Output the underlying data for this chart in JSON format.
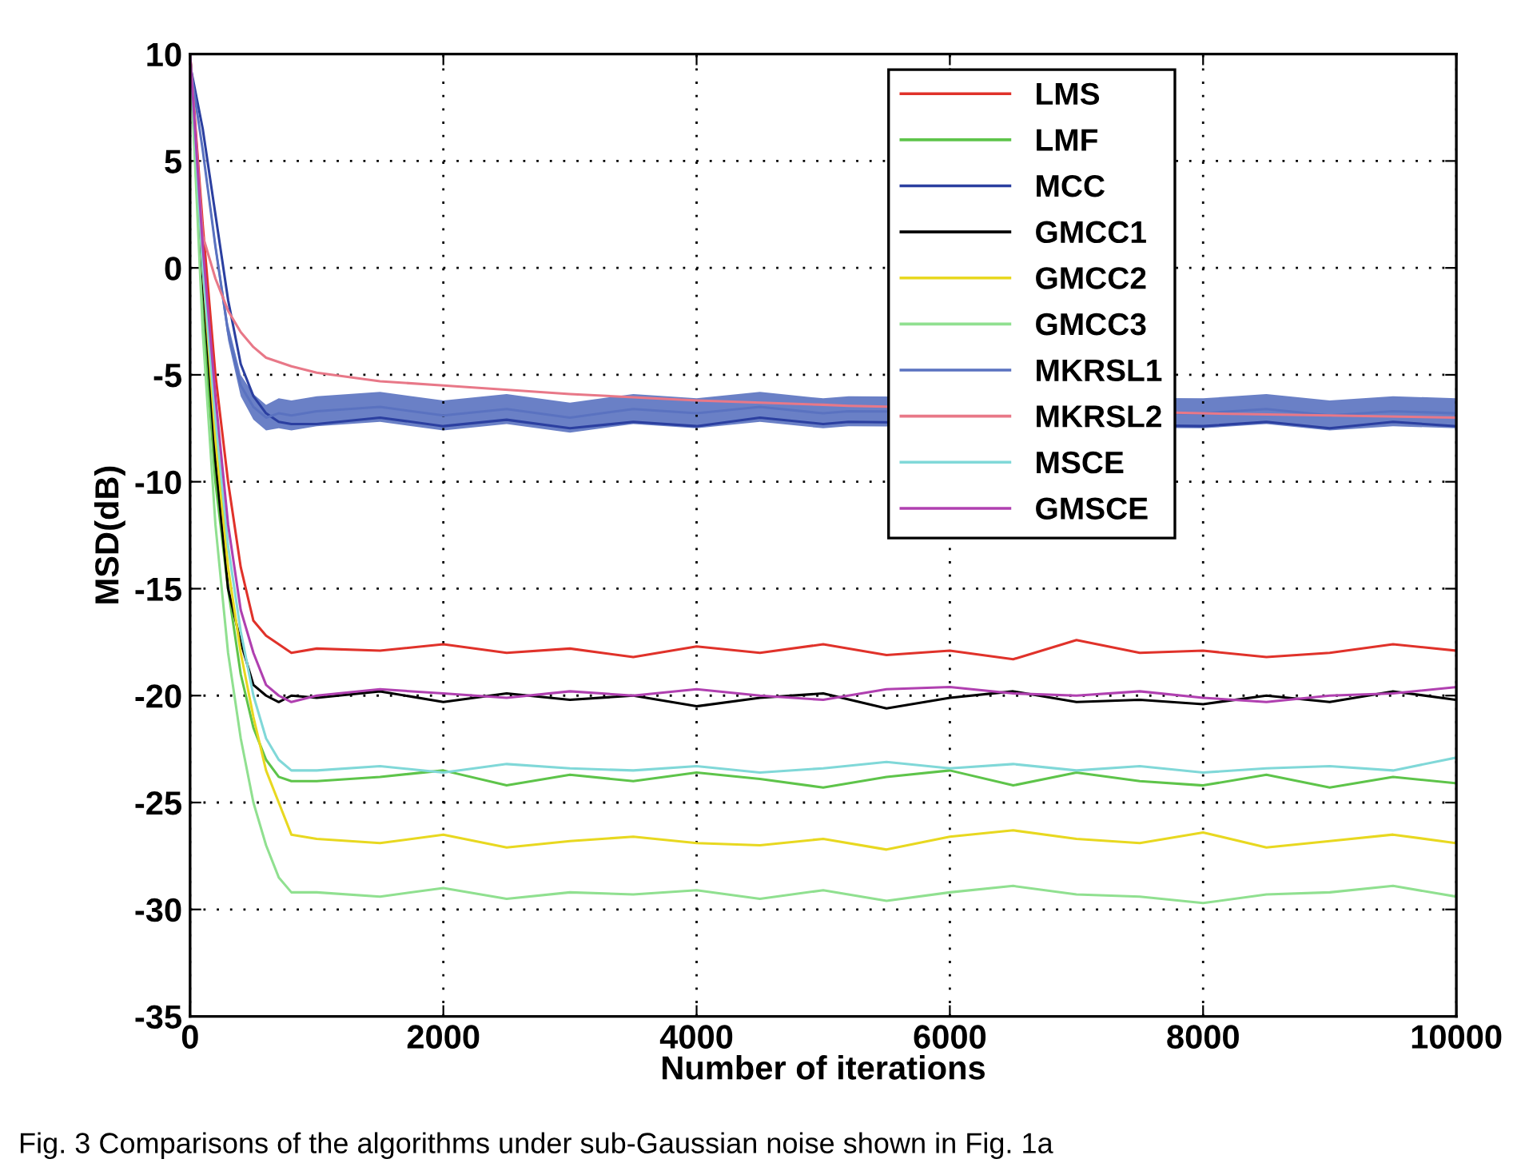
{
  "chart_data": {
    "type": "line",
    "xlabel": "Number of iterations",
    "ylabel": "MSD(dB)",
    "annotations": [
      "Fig. 3 Comparisons of the algorithms under sub-Gaussian noise shown in Fig. 1a"
    ],
    "x": [
      0,
      100,
      200,
      300,
      400,
      500,
      600,
      700,
      800,
      1000,
      1500,
      2000,
      2500,
      3000,
      3500,
      4000,
      4500,
      5000,
      5500,
      6000,
      6500,
      7000,
      7500,
      8000,
      8500,
      9000,
      9500,
      10000
    ],
    "series": [
      {
        "name": "LMS",
        "color": "#e0322a",
        "values": [
          10,
          2,
          -5,
          -10,
          -14,
          -16.5,
          -17.2,
          -17.6,
          -18,
          -17.8,
          -17.9,
          -17.6,
          -18.0,
          -17.8,
          -18.2,
          -17.7,
          -18.0,
          -17.6,
          -18.1,
          -17.9,
          -18.3,
          -17.4,
          -18.0,
          -17.9,
          -18.2,
          -18.0,
          -17.6,
          -17.9
        ]
      },
      {
        "name": "LMF",
        "color": "#5ec44a",
        "values": [
          10,
          -2,
          -10,
          -15,
          -19,
          -21.5,
          -23,
          -23.8,
          -24,
          -24.0,
          -23.8,
          -23.5,
          -24.2,
          -23.7,
          -24.0,
          -23.6,
          -23.9,
          -24.3,
          -23.8,
          -23.5,
          -24.2,
          -23.6,
          -24.0,
          -24.2,
          -23.7,
          -24.3,
          -23.8,
          -24.1
        ]
      },
      {
        "name": "MCC",
        "color": "#2b3fa0",
        "x": [
          0,
          100,
          200,
          300,
          400,
          500,
          600,
          700,
          800,
          1000,
          1500,
          2000,
          2500,
          3000,
          3500,
          4000,
          4500,
          5000,
          5200,
          8000,
          8500,
          9000,
          9500,
          10000
        ],
        "values": [
          9.5,
          6.5,
          2.5,
          -1.5,
          -4.5,
          -6,
          -6.8,
          -7.2,
          -7.3,
          -7.3,
          -7.0,
          -7.4,
          -7.1,
          -7.5,
          -7.2,
          -7.4,
          -7.0,
          -7.3,
          -7.2,
          -7.4,
          -7.2,
          -7.5,
          -7.2,
          -7.4
        ]
      },
      {
        "name": "GMCC1",
        "color": "#000000",
        "values": [
          10,
          -0.5,
          -9,
          -15,
          -17.5,
          -19.5,
          -20,
          -20.3,
          -20,
          -20.1,
          -19.8,
          -20.3,
          -19.9,
          -20.2,
          -20.0,
          -20.5,
          -20.1,
          -19.9,
          -20.6,
          -20.1,
          -19.8,
          -20.3,
          -20.2,
          -20.4,
          -20.0,
          -20.3,
          -19.8,
          -20.2
        ]
      },
      {
        "name": "GMCC2",
        "color": "#e8d820",
        "values": [
          10,
          0,
          -8,
          -14,
          -18,
          -21,
          -23.5,
          -25,
          -26.5,
          -26.7,
          -26.9,
          -26.5,
          -27.1,
          -26.8,
          -26.6,
          -26.9,
          -27.0,
          -26.7,
          -27.2,
          -26.6,
          -26.3,
          -26.7,
          -26.9,
          -26.4,
          -27.1,
          -26.8,
          -26.5,
          -26.9
        ]
      },
      {
        "name": "GMCC3",
        "color": "#90e090",
        "values": [
          10,
          -3,
          -12,
          -18,
          -22,
          -25,
          -27,
          -28.5,
          -29.2,
          -29.2,
          -29.4,
          -29.0,
          -29.5,
          -29.2,
          -29.3,
          -29.1,
          -29.5,
          -29.1,
          -29.6,
          -29.2,
          -28.9,
          -29.3,
          -29.4,
          -29.7,
          -29.3,
          -29.2,
          -28.9,
          -29.4
        ]
      },
      {
        "name": "MKRSL1",
        "color": "#5a72c0",
        "x": [
          0,
          100,
          200,
          300,
          400,
          500,
          600,
          700,
          800,
          1000,
          1500,
          2000,
          2500,
          3000,
          3500,
          4000,
          4500,
          5000,
          5200,
          8000,
          8500,
          9000,
          9500,
          10000
        ],
        "values": [
          9.5,
          5.5,
          1,
          -3,
          -5.5,
          -6.5,
          -7,
          -6.8,
          -6.9,
          -6.7,
          -6.5,
          -6.9,
          -6.6,
          -7.0,
          -6.6,
          -6.8,
          -6.5,
          -6.8,
          -6.7,
          -6.8,
          -6.6,
          -6.9,
          -6.7,
          -6.8
        ],
        "lower": [
          9.4,
          5.3,
          0.7,
          -3.4,
          -6.0,
          -7.1,
          -7.6,
          -7.5,
          -7.6,
          -7.4,
          -7.2,
          -7.6,
          -7.3,
          -7.7,
          -7.3,
          -7.5,
          -7.2,
          -7.5,
          -7.4,
          -7.5,
          -7.3,
          -7.6,
          -7.4,
          -7.5
        ],
        "upper": [
          9.6,
          5.7,
          1.3,
          -2.6,
          -5.0,
          -5.9,
          -6.4,
          -6.1,
          -6.2,
          -6.0,
          -5.8,
          -6.2,
          -5.9,
          -6.3,
          -5.9,
          -6.1,
          -5.8,
          -6.1,
          -6.0,
          -6.1,
          -5.9,
          -6.2,
          -6.0,
          -6.1
        ]
      },
      {
        "name": "MKRSL2",
        "color": "#e87888",
        "x": [
          0,
          100,
          200,
          300,
          400,
          500,
          600,
          800,
          1000,
          1500,
          2000,
          3000,
          4000,
          5000,
          5200,
          8000,
          9000,
          10000
        ],
        "values": [
          10,
          1.5,
          -0.5,
          -2,
          -3,
          -3.7,
          -4.2,
          -4.6,
          -4.9,
          -5.3,
          -5.5,
          -5.9,
          -6.2,
          -6.4,
          -6.45,
          -6.8,
          -6.9,
          -7
        ]
      },
      {
        "name": "MSCE",
        "color": "#80d8d8",
        "values": [
          10,
          0,
          -7,
          -13,
          -17,
          -20,
          -22,
          -23,
          -23.5,
          -23.5,
          -23.3,
          -23.6,
          -23.2,
          -23.4,
          -23.5,
          -23.3,
          -23.6,
          -23.4,
          -23.1,
          -23.4,
          -23.2,
          -23.5,
          -23.3,
          -23.6,
          -23.4,
          -23.3,
          -23.5,
          -22.9
        ]
      },
      {
        "name": "GMSCE",
        "color": "#b040b0",
        "values": [
          10,
          1,
          -6,
          -12,
          -16,
          -18,
          -19.5,
          -20,
          -20.3,
          -20.0,
          -19.7,
          -19.9,
          -20.1,
          -19.8,
          -20.0,
          -19.7,
          -20.0,
          -20.2,
          -19.7,
          -19.6,
          -19.9,
          -20.0,
          -19.8,
          -20.1,
          -20.3,
          -20.0,
          -19.9,
          -19.6
        ]
      }
    ],
    "xlim": [
      0,
      10000
    ],
    "xticks": [
      0,
      2000,
      4000,
      6000,
      8000,
      10000
    ],
    "ylim": [
      -35,
      10
    ],
    "yticks": [
      -35,
      -30,
      -25,
      -20,
      -15,
      -10,
      -5,
      0,
      5,
      10
    ],
    "grid": true,
    "legend": "top right",
    "line_style": "solid",
    "marker": "none"
  }
}
